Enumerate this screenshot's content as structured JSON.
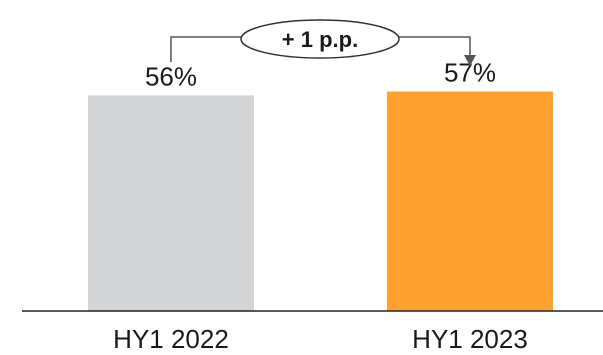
{
  "chart_data": {
    "type": "bar",
    "categories": [
      "HY1 2022",
      "HY1 2023"
    ],
    "values": [
      56,
      57
    ],
    "value_labels": [
      "56%",
      "57%"
    ],
    "colors": [
      "#d4d5d7",
      "#ffa02f"
    ],
    "title": "",
    "xlabel": "",
    "ylabel": "",
    "ylim": [
      0,
      60
    ],
    "grid": false,
    "legend": "none",
    "annotation": {
      "text": "+ 1 p.p.",
      "from": "HY1 2022",
      "to": "HY1 2023"
    }
  }
}
